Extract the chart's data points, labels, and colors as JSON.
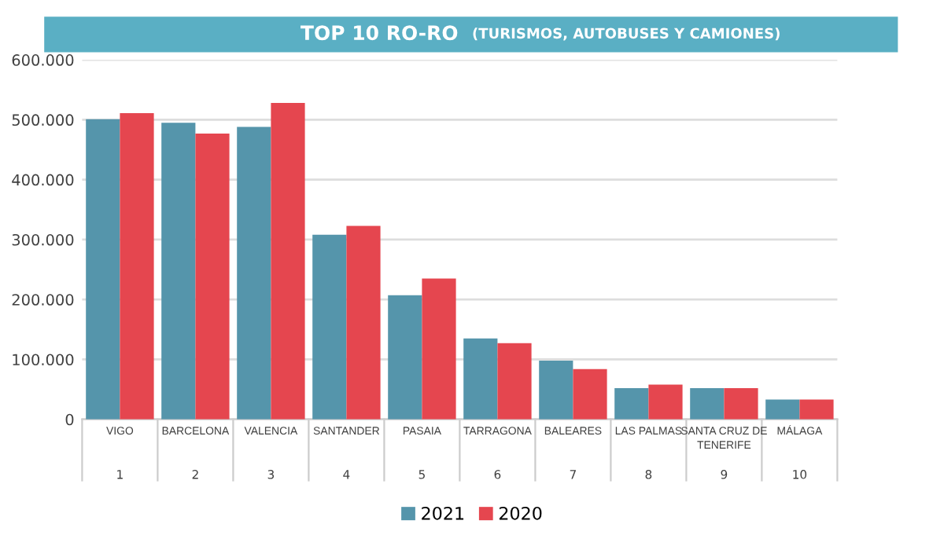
{
  "chart_data": {
    "type": "bar",
    "title": "TOP 10 RO-RO",
    "subtitle": "(TURISMOS, AUTOBUSES Y CAMIONES)",
    "categories": [
      "VIGO\n1",
      "BARCELONA\n2",
      "VALENCIA\n3",
      "SANTANDER\n4",
      "PASAIA\n5",
      "TARRAGONA\n6",
      "BALEARES\n7",
      "LAS PALMAS\n8",
      "SANTA CRUZ DE\nTENERIFE\n9",
      "MÁLAGA\n10"
    ],
    "series": [
      {
        "name": "2021",
        "color": "#5595ab",
        "values": [
          501000,
          495000,
          488000,
          308000,
          207000,
          135000,
          98000,
          52000,
          52000,
          33000
        ]
      },
      {
        "name": "2020",
        "color": "#e5464f",
        "values": [
          511000,
          477000,
          528000,
          323000,
          235000,
          127000,
          84000,
          58000,
          52000,
          33000
        ]
      }
    ],
    "ylim": [
      0,
      600000
    ],
    "yticks": [
      0,
      {
        "value": 100000,
        "label": "100.000"
      },
      {
        "value": 200000,
        "label": "200.000"
      },
      {
        "value": 300000,
        "label": "300.000"
      },
      {
        "value": 400000,
        "label": "400.000"
      },
      {
        "value": 500000,
        "label": "500.000"
      },
      {
        "value": 600000,
        "label": "600.000"
      }
    ],
    "grid": "y",
    "legend": "bottom"
  }
}
